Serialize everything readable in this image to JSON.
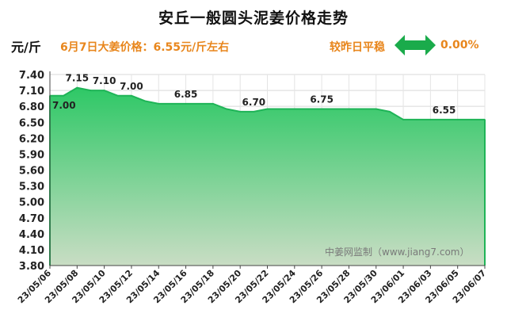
{
  "header": {
    "title": "安丘一般圆头泥姜价格走势",
    "unit": "元/斤",
    "price_note": "6月7日大姜价格：6.55元/斤左右",
    "compare_label": "较昨日平稳",
    "compare_value": "0.00%",
    "compare_icon": "double-arrow-icon",
    "accent_color": "#e8861c",
    "arrow_color": "#1aab4b"
  },
  "watermark": "中姜网监制（www.jiang7.com）",
  "chart_data": {
    "type": "area",
    "title": "安丘一般圆头泥姜价格走势",
    "xlabel": "",
    "ylabel": "元/斤",
    "ylim": [
      3.8,
      7.4
    ],
    "yticks": [
      3.8,
      4.1,
      4.4,
      4.7,
      5.0,
      5.3,
      5.6,
      5.9,
      6.2,
      6.5,
      6.8,
      7.1,
      7.4
    ],
    "xticks": [
      "23/05/06",
      "23/05/08",
      "23/05/10",
      "23/05/12",
      "23/05/14",
      "23/05/16",
      "23/05/18",
      "23/05/20",
      "23/05/22",
      "23/05/24",
      "23/05/26",
      "23/05/28",
      "23/05/30",
      "23/06/01",
      "23/06/03",
      "23/06/05",
      "23/06/07"
    ],
    "grid": true,
    "series": [
      {
        "x": [
          "23/05/06",
          "23/05/07",
          "23/05/08",
          "23/05/09",
          "23/05/10",
          "23/05/11",
          "23/05/12",
          "23/05/13",
          "23/05/14",
          "23/05/15",
          "23/05/16",
          "23/05/17",
          "23/05/18",
          "23/05/19",
          "23/05/20",
          "23/05/21",
          "23/05/22",
          "23/05/23",
          "23/05/24",
          "23/05/25",
          "23/05/26",
          "23/05/27",
          "23/05/28",
          "23/05/29",
          "23/05/30",
          "23/05/31",
          "23/06/01",
          "23/06/02",
          "23/06/03",
          "23/06/04",
          "23/06/05",
          "23/06/06",
          "23/06/07"
        ],
        "values": [
          7.0,
          7.0,
          7.15,
          7.1,
          7.1,
          7.0,
          7.0,
          6.9,
          6.85,
          6.85,
          6.85,
          6.85,
          6.85,
          6.75,
          6.7,
          6.7,
          6.75,
          6.75,
          6.75,
          6.75,
          6.75,
          6.75,
          6.75,
          6.75,
          6.75,
          6.7,
          6.55,
          6.55,
          6.55,
          6.55,
          6.55,
          6.55,
          6.55
        ],
        "color": "#2ec866"
      }
    ],
    "data_labels": [
      {
        "x": "23/05/06",
        "text": "7.00"
      },
      {
        "x": "23/05/08",
        "text": "7.15"
      },
      {
        "x": "23/05/10",
        "text": "7.10"
      },
      {
        "x": "23/05/12",
        "text": "7.00"
      },
      {
        "x": "23/05/16",
        "text": "6.85"
      },
      {
        "x": "23/05/21",
        "text": "6.70"
      },
      {
        "x": "23/05/26",
        "text": "6.75"
      },
      {
        "x": "23/06/04",
        "text": "6.55"
      }
    ]
  }
}
